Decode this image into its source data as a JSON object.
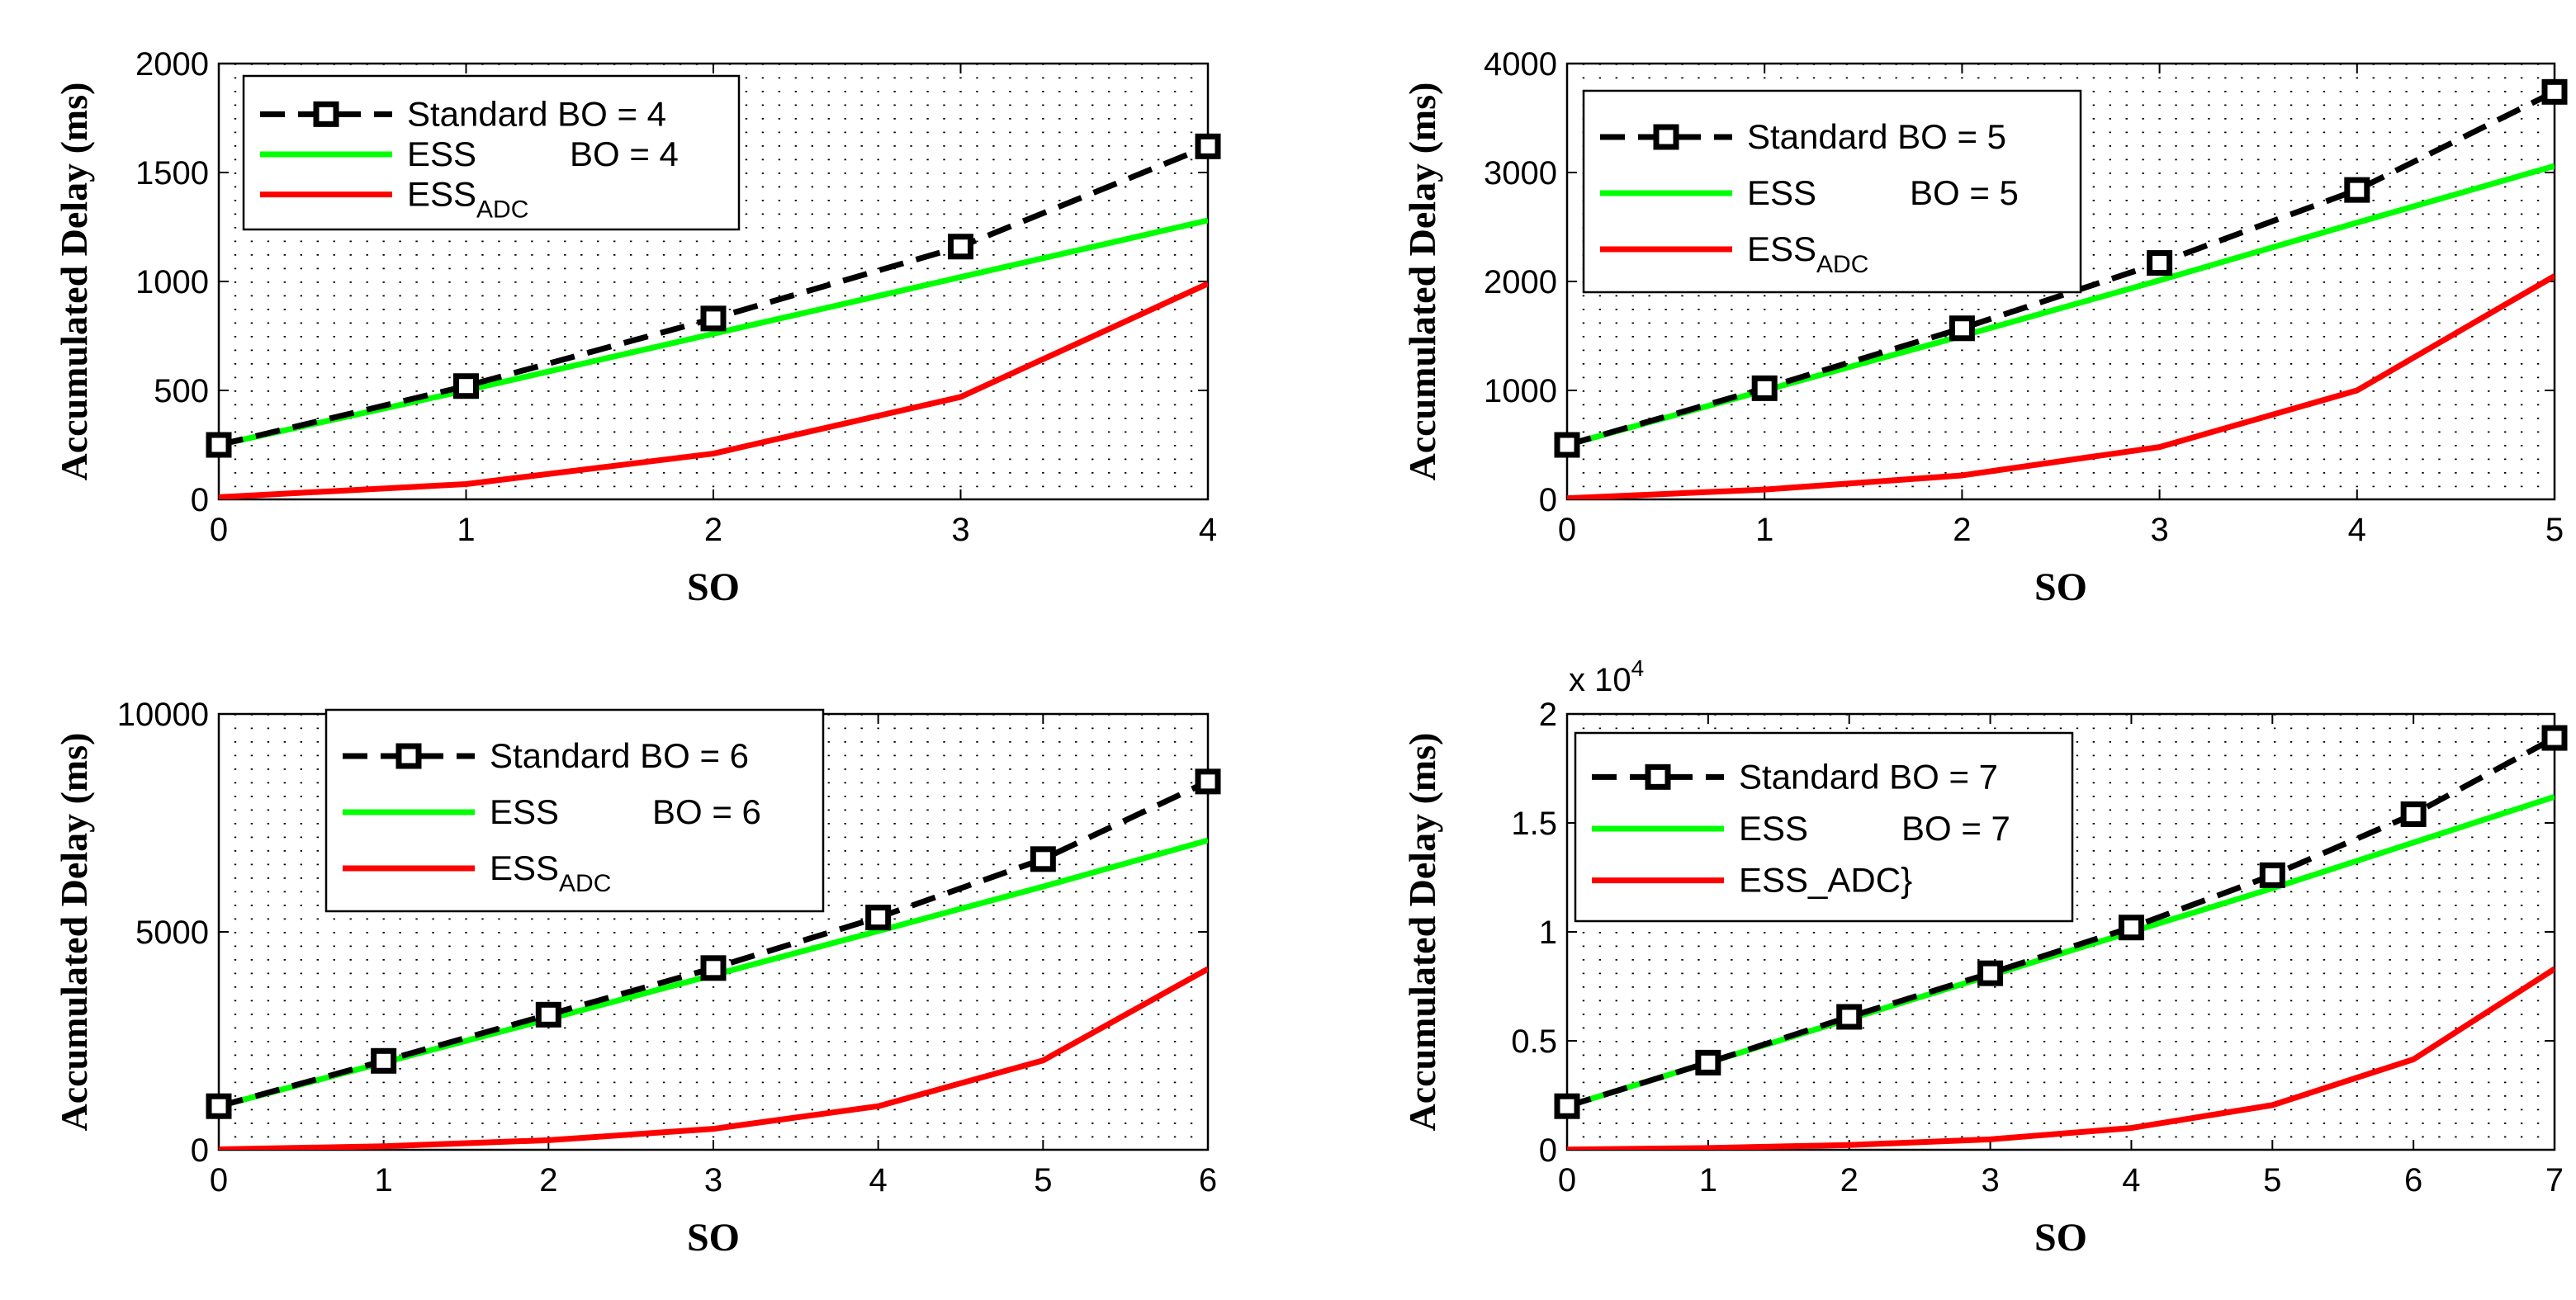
{
  "colors": {
    "standard": "#000000",
    "ess": "#00ff00",
    "adc": "#ff0000",
    "dots": "#000000"
  },
  "chart_data": [
    {
      "type": "line",
      "xlabel": "SO",
      "ylabel": "Accumulated Delay (ms)",
      "xlim": [
        0,
        4
      ],
      "ylim": [
        0,
        2000
      ],
      "xticks": [
        "0",
        "1",
        "2",
        "3",
        "4"
      ],
      "yticks": [
        "0",
        "500",
        "1000",
        "1500",
        "2000"
      ],
      "ytick_values": [
        0,
        500,
        1000,
        1500,
        2000
      ],
      "multiplier": null,
      "legend_position": "top-left",
      "x": [
        0,
        1,
        2,
        3,
        4
      ],
      "series": [
        {
          "key": "standard",
          "name": "Standard BO = 4",
          "label": "Standard BO = 4",
          "style": "dashed-square",
          "values": [
            250,
            520,
            830,
            1160,
            1620
          ]
        },
        {
          "key": "ess",
          "name": "ESS BO = 4",
          "label": "ESS",
          "label_extra": "BO = 4",
          "style": "solid",
          "values": [
            250,
            500,
            760,
            1020,
            1280
          ]
        },
        {
          "key": "adc",
          "name": "ESS_ADC",
          "label": "ESS",
          "label_sub": "ADC",
          "style": "solid",
          "values": [
            10,
            70,
            210,
            470,
            990
          ]
        }
      ]
    },
    {
      "type": "line",
      "xlabel": "SO",
      "ylabel": "Accumulated Delay (ms)",
      "xlim": [
        0,
        5
      ],
      "ylim": [
        0,
        4000
      ],
      "xticks": [
        "0",
        "1",
        "2",
        "3",
        "4",
        "5"
      ],
      "yticks": [
        "0",
        "1000",
        "2000",
        "3000",
        "4000"
      ],
      "ytick_values": [
        0,
        1000,
        2000,
        3000,
        4000
      ],
      "multiplier": null,
      "legend_position": "top-left",
      "x": [
        0,
        1,
        2,
        3,
        4,
        5
      ],
      "series": [
        {
          "key": "standard",
          "name": "Standard BO = 5",
          "label": "Standard BO = 5",
          "style": "dashed-square",
          "values": [
            500,
            1020,
            1570,
            2170,
            2840,
            3740
          ]
        },
        {
          "key": "ess",
          "name": "ESS BO = 5",
          "label": "ESS",
          "label_extra": "BO = 5",
          "style": "solid",
          "values": [
            500,
            1000,
            1500,
            2010,
            2540,
            3060
          ]
        },
        {
          "key": "adc",
          "name": "ESS_ADC",
          "label": "ESS",
          "label_sub": "ADC",
          "style": "solid",
          "values": [
            10,
            90,
            220,
            480,
            1000,
            2050
          ]
        }
      ]
    },
    {
      "type": "line",
      "xlabel": "SO",
      "ylabel": "Accumulated Delay (ms)",
      "xlim": [
        0,
        6
      ],
      "ylim": [
        0,
        10000
      ],
      "xticks": [
        "0",
        "1",
        "2",
        "3",
        "4",
        "5",
        "6"
      ],
      "yticks": [
        "0",
        "5000",
        "10000"
      ],
      "ytick_values": [
        0,
        5000,
        10000
      ],
      "multiplier": null,
      "legend_position": "top-center",
      "x": [
        0,
        1,
        2,
        3,
        4,
        5,
        6
      ],
      "series": [
        {
          "key": "standard",
          "name": "Standard BO = 6",
          "label": "Standard BO = 6",
          "style": "dashed-square",
          "values": [
            1000,
            2040,
            3100,
            4170,
            5330,
            6670,
            8450
          ]
        },
        {
          "key": "ess",
          "name": "ESS BO = 6",
          "label": "ESS",
          "label_extra": "BO = 6",
          "style": "solid",
          "values": [
            1000,
            2000,
            3000,
            4010,
            5020,
            6040,
            7100
          ]
        },
        {
          "key": "adc",
          "name": "ESS_ADC",
          "label": "ESS",
          "label_sub": "ADC",
          "style": "solid",
          "values": [
            10,
            80,
            220,
            480,
            1000,
            2050,
            4150
          ]
        }
      ]
    },
    {
      "type": "line",
      "xlabel": "SO",
      "ylabel": "Accumulated Delay (ms)",
      "xlim": [
        0,
        7
      ],
      "ylim": [
        0,
        2
      ],
      "xticks": [
        "0",
        "1",
        "2",
        "3",
        "4",
        "5",
        "6",
        "7"
      ],
      "yticks": [
        "0",
        "0.5",
        "1",
        "1.5",
        "2"
      ],
      "ytick_values": [
        0,
        0.5,
        1,
        1.5,
        2
      ],
      "multiplier": {
        "base": "x 10",
        "exp": "4"
      },
      "legend_position": "top-left",
      "x": [
        0,
        1,
        2,
        3,
        4,
        5,
        6,
        7
      ],
      "series": [
        {
          "key": "standard",
          "name": "Standard BO = 7",
          "label": "Standard BO = 7",
          "style": "dashed-square",
          "values": [
            0.2,
            0.4,
            0.61,
            0.81,
            1.02,
            1.26,
            1.54,
            1.89
          ]
        },
        {
          "key": "ess",
          "name": "ESS BO = 7",
          "label": "ESS",
          "label_extra": "BO = 7",
          "style": "solid",
          "values": [
            0.2,
            0.4,
            0.6,
            0.8,
            1.0,
            1.2,
            1.41,
            1.62
          ]
        },
        {
          "key": "adc",
          "name": "ESS_ADC}",
          "label": "ESS_ADC}",
          "style": "solid",
          "values": [
            0.001,
            0.008,
            0.022,
            0.048,
            0.1,
            0.205,
            0.415,
            0.83
          ]
        }
      ]
    }
  ]
}
